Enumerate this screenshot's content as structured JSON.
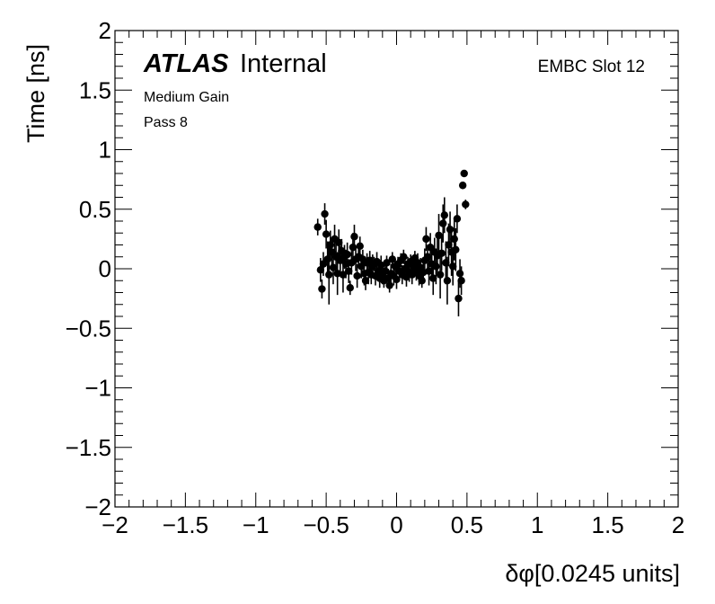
{
  "chart_data": {
    "type": "scatter",
    "title": "",
    "xlabel": "δφ[0.0245 units]",
    "ylabel": "Time [ns]",
    "xlim": [
      -2,
      2
    ],
    "ylim": [
      -2,
      2
    ],
    "xticks": [
      -2,
      -1.5,
      -1,
      -0.5,
      0,
      0.5,
      1,
      1.5,
      2
    ],
    "yticks": [
      -2,
      -1.5,
      -1,
      -0.5,
      0,
      0.5,
      1,
      1.5,
      2
    ],
    "xtick_labels": [
      "−2",
      "−1.5",
      "−1",
      "−0.5",
      "0",
      "0.5",
      "1",
      "1.5",
      "2"
    ],
    "ytick_labels": [
      "−2",
      "−1.5",
      "−1",
      "−0.5",
      "0",
      "0.5",
      "1",
      "1.5",
      "2"
    ],
    "annotations": {
      "experiment": "ATLAS",
      "status": "Internal",
      "gain": "Medium Gain",
      "pass": "Pass 8",
      "region": "EMBC Slot 12"
    },
    "grid": false,
    "marker_color": "#000000",
    "series": [
      {
        "points": [
          {
            "x": -0.56,
            "y": 0.35,
            "err": 0.07
          },
          {
            "x": -0.54,
            "y": -0.01,
            "err": 0.1
          },
          {
            "x": -0.53,
            "y": -0.17,
            "err": 0.08
          },
          {
            "x": -0.52,
            "y": 0.04,
            "err": 0.1
          },
          {
            "x": -0.51,
            "y": 0.46,
            "err": 0.09
          },
          {
            "x": -0.5,
            "y": 0.29,
            "err": 0.12
          },
          {
            "x": -0.49,
            "y": 0.08,
            "err": 0.15
          },
          {
            "x": -0.48,
            "y": -0.05,
            "err": 0.25
          },
          {
            "x": -0.47,
            "y": 0.2,
            "err": 0.12
          },
          {
            "x": -0.46,
            "y": 0.14,
            "err": 0.12
          },
          {
            "x": -0.45,
            "y": 0.01,
            "err": 0.14
          },
          {
            "x": -0.44,
            "y": 0.25,
            "err": 0.12
          },
          {
            "x": -0.43,
            "y": 0.1,
            "err": 0.12
          },
          {
            "x": -0.42,
            "y": -0.04,
            "err": 0.18
          },
          {
            "x": -0.41,
            "y": 0.22,
            "err": 0.11
          },
          {
            "x": -0.4,
            "y": 0.07,
            "err": 0.12
          },
          {
            "x": -0.39,
            "y": 0.15,
            "err": 0.1
          },
          {
            "x": -0.38,
            "y": -0.05,
            "err": 0.15
          },
          {
            "x": -0.37,
            "y": 0.1,
            "err": 0.1
          },
          {
            "x": -0.36,
            "y": 0.04,
            "err": 0.12
          },
          {
            "x": -0.35,
            "y": 0.12,
            "err": 0.1
          },
          {
            "x": -0.34,
            "y": -0.02,
            "err": 0.1
          },
          {
            "x": -0.33,
            "y": -0.16,
            "err": 0.06
          },
          {
            "x": -0.32,
            "y": 0.05,
            "err": 0.1
          },
          {
            "x": -0.31,
            "y": 0.18,
            "err": 0.12
          },
          {
            "x": -0.3,
            "y": 0.27,
            "err": 0.1
          },
          {
            "x": -0.29,
            "y": 0.08,
            "err": 0.1
          },
          {
            "x": -0.28,
            "y": -0.06,
            "err": 0.1
          },
          {
            "x": -0.27,
            "y": 0.1,
            "err": 0.08
          },
          {
            "x": -0.26,
            "y": 0.19,
            "err": 0.08
          },
          {
            "x": -0.25,
            "y": 0.02,
            "err": 0.1
          },
          {
            "x": -0.24,
            "y": 0.08,
            "err": 0.08
          },
          {
            "x": -0.23,
            "y": -0.04,
            "err": 0.1
          },
          {
            "x": -0.22,
            "y": -0.1,
            "err": 0.08
          },
          {
            "x": -0.21,
            "y": 0.05,
            "err": 0.08
          },
          {
            "x": -0.2,
            "y": -0.03,
            "err": 0.1
          },
          {
            "x": -0.19,
            "y": 0.07,
            "err": 0.08
          },
          {
            "x": -0.18,
            "y": -0.05,
            "err": 0.08
          },
          {
            "x": -0.17,
            "y": 0.02,
            "err": 0.1
          },
          {
            "x": -0.16,
            "y": 0.04,
            "err": 0.06
          },
          {
            "x": -0.15,
            "y": -0.06,
            "err": 0.08
          },
          {
            "x": -0.14,
            "y": 0.06,
            "err": 0.08
          },
          {
            "x": -0.13,
            "y": -0.02,
            "err": 0.08
          },
          {
            "x": -0.12,
            "y": -0.08,
            "err": 0.08
          },
          {
            "x": -0.11,
            "y": 0.03,
            "err": 0.08
          },
          {
            "x": -0.1,
            "y": -0.05,
            "err": 0.08
          },
          {
            "x": -0.09,
            "y": -0.1,
            "err": 0.06
          },
          {
            "x": -0.08,
            "y": -0.02,
            "err": 0.08
          },
          {
            "x": -0.07,
            "y": 0.05,
            "err": 0.06
          },
          {
            "x": -0.06,
            "y": -0.08,
            "err": 0.08
          },
          {
            "x": -0.05,
            "y": -0.14,
            "err": 0.06
          },
          {
            "x": -0.04,
            "y": -0.04,
            "err": 0.08
          },
          {
            "x": -0.03,
            "y": 0.08,
            "err": 0.06
          },
          {
            "x": -0.02,
            "y": -0.06,
            "err": 0.08
          },
          {
            "x": -0.01,
            "y": 0.02,
            "err": 0.06
          },
          {
            "x": 0.0,
            "y": -0.09,
            "err": 0.08
          },
          {
            "x": 0.01,
            "y": 0.04,
            "err": 0.06
          },
          {
            "x": 0.02,
            "y": -0.02,
            "err": 0.08
          },
          {
            "x": 0.03,
            "y": 0.07,
            "err": 0.06
          },
          {
            "x": 0.04,
            "y": -0.05,
            "err": 0.08
          },
          {
            "x": 0.05,
            "y": 0.1,
            "err": 0.06
          },
          {
            "x": 0.06,
            "y": 0.0,
            "err": 0.08
          },
          {
            "x": 0.07,
            "y": -0.07,
            "err": 0.08
          },
          {
            "x": 0.08,
            "y": 0.04,
            "err": 0.06
          },
          {
            "x": 0.09,
            "y": -0.03,
            "err": 0.08
          },
          {
            "x": 0.1,
            "y": 0.06,
            "err": 0.06
          },
          {
            "x": 0.11,
            "y": -0.05,
            "err": 0.08
          },
          {
            "x": 0.12,
            "y": 0.02,
            "err": 0.08
          },
          {
            "x": 0.13,
            "y": 0.09,
            "err": 0.06
          },
          {
            "x": 0.14,
            "y": -0.02,
            "err": 0.08
          },
          {
            "x": 0.15,
            "y": 0.05,
            "err": 0.08
          },
          {
            "x": 0.16,
            "y": -0.06,
            "err": 0.08
          },
          {
            "x": 0.17,
            "y": 0.01,
            "err": 0.08
          },
          {
            "x": 0.18,
            "y": -0.1,
            "err": 0.06
          },
          {
            "x": 0.19,
            "y": -0.03,
            "err": 0.08
          },
          {
            "x": 0.2,
            "y": 0.07,
            "err": 0.1
          },
          {
            "x": 0.21,
            "y": 0.25,
            "err": 0.1
          },
          {
            "x": 0.22,
            "y": 0.1,
            "err": 0.1
          },
          {
            "x": 0.23,
            "y": -0.02,
            "err": 0.12
          },
          {
            "x": 0.24,
            "y": 0.18,
            "err": 0.12
          },
          {
            "x": 0.25,
            "y": 0.04,
            "err": 0.12
          },
          {
            "x": 0.26,
            "y": -0.08,
            "err": 0.14
          },
          {
            "x": 0.27,
            "y": 0.14,
            "err": 0.12
          },
          {
            "x": 0.28,
            "y": 0.02,
            "err": 0.15
          },
          {
            "x": 0.29,
            "y": 0.11,
            "err": 0.15
          },
          {
            "x": 0.3,
            "y": 0.28,
            "err": 0.18
          },
          {
            "x": 0.31,
            "y": -0.05,
            "err": 0.2
          },
          {
            "x": 0.32,
            "y": 0.13,
            "err": 0.15
          },
          {
            "x": 0.33,
            "y": 0.38,
            "err": 0.16
          },
          {
            "x": 0.34,
            "y": 0.45,
            "err": 0.15
          },
          {
            "x": 0.35,
            "y": 0.05,
            "err": 0.18
          },
          {
            "x": 0.36,
            "y": -0.1,
            "err": 0.2
          },
          {
            "x": 0.37,
            "y": 0.2,
            "err": 0.18
          },
          {
            "x": 0.38,
            "y": 0.33,
            "err": 0.15
          },
          {
            "x": 0.39,
            "y": 0.14,
            "err": 0.2
          },
          {
            "x": 0.4,
            "y": 0.02,
            "err": 0.16
          },
          {
            "x": 0.41,
            "y": 0.25,
            "err": 0.18
          },
          {
            "x": 0.42,
            "y": 0.16,
            "err": 0.18
          },
          {
            "x": 0.43,
            "y": 0.42,
            "err": 0.12
          },
          {
            "x": 0.44,
            "y": -0.25,
            "err": 0.15
          },
          {
            "x": 0.45,
            "y": -0.04,
            "err": 0.12
          },
          {
            "x": 0.46,
            "y": -0.1,
            "err": 0.12
          },
          {
            "x": 0.47,
            "y": 0.7,
            "err": 0.03
          },
          {
            "x": 0.48,
            "y": 0.8,
            "err": 0.03
          },
          {
            "x": 0.49,
            "y": 0.54,
            "err": 0.04
          }
        ]
      }
    ]
  }
}
